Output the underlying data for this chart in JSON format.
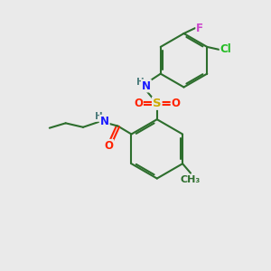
{
  "background_color": "#eaeaea",
  "bond_color": "#2d6e2d",
  "bond_width": 1.5,
  "atom_colors": {
    "N": "#1a1aff",
    "O": "#ff2200",
    "S": "#ccaa00",
    "Cl": "#22bb22",
    "F": "#cc44cc",
    "C": "#2d6e2d",
    "H": "#4a7a7a"
  },
  "font_size_atom": 8.5,
  "font_size_small": 7.5
}
